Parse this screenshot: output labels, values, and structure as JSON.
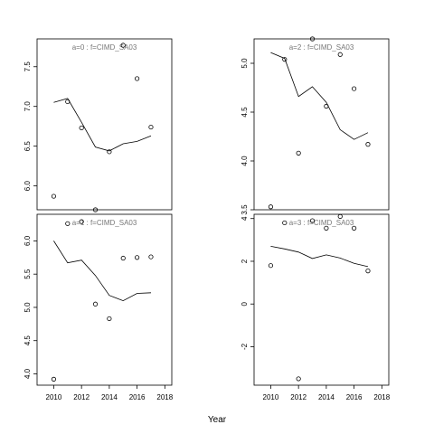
{
  "figure": {
    "xlabel": "Year"
  },
  "chart_data": [
    {
      "type": "scatter",
      "title": "a=0  :  f=CIMD_SA03",
      "xlim": [
        2008.8,
        2018.5
      ],
      "ylim": [
        5.7,
        7.85
      ],
      "xticks": [],
      "yticks": [
        6.0,
        6.5,
        7.0,
        7.5
      ],
      "points": {
        "x": [
          2010,
          2011,
          2012,
          2013,
          2014,
          2015,
          2016,
          2017
        ],
        "y": [
          5.87,
          7.06,
          6.73,
          5.7,
          6.43,
          7.77,
          7.35,
          6.74
        ]
      },
      "smooth": {
        "x": [
          2010,
          2011,
          2012,
          2013,
          2014,
          2015,
          2016,
          2017
        ],
        "y": [
          7.05,
          7.1,
          6.8,
          6.49,
          6.44,
          6.53,
          6.56,
          6.63
        ]
      }
    },
    {
      "type": "scatter",
      "title": "a=2  :  f=CIMD_SA03",
      "xlim": [
        2008.8,
        2018.5
      ],
      "ylim": [
        3.5,
        5.25
      ],
      "xticks": [],
      "yticks": [
        3.5,
        4.0,
        4.5,
        5.0
      ],
      "points": {
        "x": [
          2010,
          2011,
          2012,
          2013,
          2014,
          2015,
          2016,
          2017
        ],
        "y": [
          3.53,
          5.04,
          4.08,
          5.25,
          4.56,
          5.09,
          4.74,
          4.17
        ]
      },
      "smooth": {
        "x": [
          2010,
          2011,
          2012,
          2013,
          2014,
          2015,
          2016,
          2017
        ],
        "y": [
          5.11,
          5.05,
          4.66,
          4.76,
          4.6,
          4.32,
          4.22,
          4.29
        ]
      }
    },
    {
      "type": "scatter",
      "title": "a=1  :  f=CIMD_SA03",
      "xlim": [
        2008.8,
        2018.5
      ],
      "ylim": [
        3.83,
        6.4
      ],
      "xticks": [
        2010,
        2012,
        2014,
        2016,
        2018
      ],
      "yticks": [
        4.0,
        4.5,
        5.0,
        5.5,
        6.0
      ],
      "points": {
        "x": [
          2010,
          2011,
          2012,
          2013,
          2014,
          2015,
          2016,
          2017
        ],
        "y": [
          3.92,
          6.26,
          6.29,
          5.05,
          4.83,
          5.74,
          5.75,
          5.76
        ]
      },
      "smooth": {
        "x": [
          2010,
          2011,
          2012,
          2013,
          2014,
          2015,
          2016,
          2017
        ],
        "y": [
          6.0,
          5.67,
          5.71,
          5.48,
          5.18,
          5.1,
          5.21,
          5.22
        ]
      }
    },
    {
      "type": "scatter",
      "title": "a=3  :  f=CIMD_SA03",
      "xlim": [
        2008.8,
        2018.5
      ],
      "ylim": [
        -3.8,
        4.2
      ],
      "xticks": [
        2010,
        2012,
        2014,
        2016,
        2018
      ],
      "yticks": [
        -2,
        0,
        2,
        4
      ],
      "points": {
        "x": [
          2010,
          2011,
          2012,
          2013,
          2014,
          2015,
          2016,
          2017
        ],
        "y": [
          1.8,
          3.8,
          -3.5,
          3.9,
          3.55,
          4.1,
          3.55,
          1.55
        ]
      },
      "smooth": {
        "x": [
          2010,
          2011,
          2012,
          2013,
          2014,
          2015,
          2016,
          2017
        ],
        "y": [
          2.7,
          2.58,
          2.43,
          2.13,
          2.3,
          2.15,
          1.9,
          1.75
        ]
      }
    }
  ]
}
